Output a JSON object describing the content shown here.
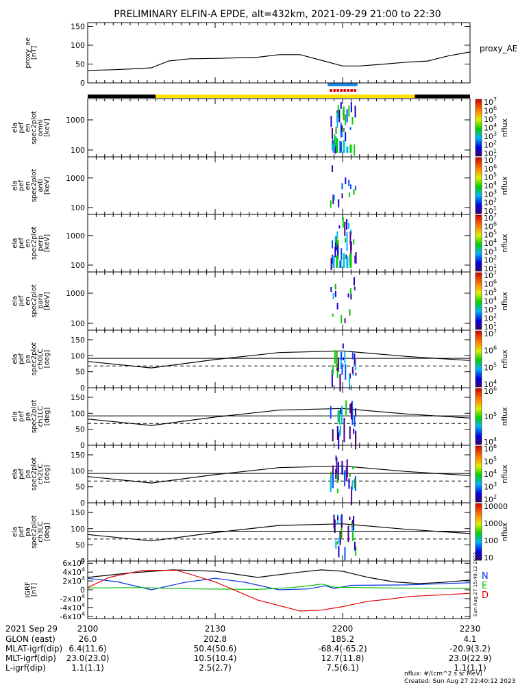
{
  "title": "PRELIMINARY ELFIN-A EPDE, alt=432km, 2021-09-29 21:00 to 22:30",
  "footer": {
    "units_note": "nflux: #/(cm^2 s sr MeV)",
    "created": "Created: Sun Aug 27 22:40:12 2023",
    "side_stamp": "Sun Aug 27 15:40:12 2023"
  },
  "ephemeris": {
    "date": "2021 Sep 29",
    "rows": [
      {
        "label": "GLON (east)",
        "values": [
          "26.0",
          "202.8",
          "185.2",
          "4.1"
        ]
      },
      {
        "label": "MLAT-igrf(dip)",
        "values": [
          "6.4(11.6)",
          "50.4(50.6)",
          "-68.4(-65.2)",
          "-20.9(3.2)"
        ]
      },
      {
        "label": "MLT-igrf(dip)",
        "values": [
          "23.0(23.0)",
          "10.5(10.4)",
          "12.7(11.8)",
          "23.0(22.9)"
        ]
      },
      {
        "label": "L-igrf(dip)",
        "values": [
          "1.1(1.1)",
          "2.5(2.7)",
          "7.5(6.1)",
          "1.1(1.1)"
        ]
      }
    ]
  },
  "chart_data": {
    "type": "line",
    "time_axis": {
      "range": [
        "21:00",
        "22:30"
      ],
      "ticks": [
        "2100",
        "2130",
        "2200",
        "2230"
      ]
    },
    "status_bar": {
      "segments": [
        {
          "start": "21:00",
          "end": "21:16",
          "color": "#000000"
        },
        {
          "start": "21:16",
          "end": "22:17",
          "color": "#ffe100"
        },
        {
          "start": "22:17",
          "end": "22:30",
          "color": "#000000"
        }
      ],
      "science_zone": {
        "start": "21:56.5",
        "end": "22:03.5",
        "color": "#1e88e5"
      },
      "red_markers": {
        "start": "21:57",
        "end": "22:03",
        "color": "#e00000"
      }
    },
    "panels": [
      {
        "id": "proxy_ae",
        "type": "line",
        "ylabel": [
          "proxy_ae",
          "[nT]"
        ],
        "legend": "proxy_AE",
        "ylim": [
          0,
          160
        ],
        "yticks": [
          "0",
          "50",
          "100",
          "150"
        ],
        "x": [
          0,
          6,
          12,
          15,
          19,
          24,
          30,
          40,
          45,
          50,
          55,
          60,
          64,
          70,
          75,
          80,
          85,
          90
        ],
        "y": [
          33,
          35,
          38,
          40,
          58,
          64,
          65,
          68,
          75,
          75,
          60,
          45,
          45,
          50,
          55,
          58,
          72,
          82
        ]
      },
      {
        "id": "spec_omni",
        "type": "heatmap",
        "ylabel": [
          "ela",
          "pef",
          "en",
          "spec2plot",
          "omni",
          "[keV]"
        ],
        "yticks": [
          "100",
          "1000"
        ],
        "colorbar": {
          "label": "nflux",
          "ticks": [
            "10^1",
            "10^2",
            "10^3",
            "10^4",
            "10^5",
            "10^6",
            "10^7"
          ]
        }
      },
      {
        "id": "spec_anti",
        "type": "heatmap",
        "ylabel": [
          "ela",
          "pef",
          "en",
          "spec2plot",
          "anti",
          "[keV]"
        ],
        "yticks": [
          "100",
          "1000"
        ],
        "colorbar": {
          "label": "nflux",
          "ticks": [
            "10^1",
            "10^2",
            "10^3",
            "10^4",
            "10^5",
            "10^6",
            "10^7"
          ]
        }
      },
      {
        "id": "spec_perp",
        "type": "heatmap",
        "ylabel": [
          "ela",
          "pef",
          "en",
          "spec2plot",
          "perp",
          "[keV]"
        ],
        "yticks": [
          "100",
          "1000"
        ],
        "colorbar": {
          "label": "nflux",
          "ticks": [
            "10^1",
            "10^2",
            "10^3",
            "10^4",
            "10^5",
            "10^6",
            "10^7"
          ]
        }
      },
      {
        "id": "spec_para",
        "type": "heatmap",
        "ylabel": [
          "ela",
          "pef",
          "en",
          "spec2plot",
          "para",
          "[keV]"
        ],
        "yticks": [
          "100",
          "1000"
        ],
        "colorbar": {
          "label": "nflux",
          "ticks": [
            "10^1",
            "10^2",
            "10^3",
            "10^4",
            "10^5",
            "10^6",
            "10^7"
          ]
        }
      },
      {
        "id": "ch0LC",
        "type": "heatmap",
        "ylabel": [
          "ela",
          "pef",
          "pa",
          "spec2plot",
          "ch0LC",
          "[deg]"
        ],
        "ylim": [
          0,
          180
        ],
        "yticks": [
          "0",
          "50",
          "100",
          "150"
        ],
        "colorbar": {
          "label": "nflux",
          "ticks": [
            "10^4",
            "10^5",
            "10^6",
            "10^7"
          ]
        }
      },
      {
        "id": "ch1LC",
        "type": "heatmap",
        "ylabel": [
          "ela",
          "pef",
          "pa",
          "spec2plot",
          "ch1LC",
          "[deg]"
        ],
        "ylim": [
          0,
          180
        ],
        "yticks": [
          "0",
          "50",
          "100",
          "150"
        ],
        "colorbar": {
          "label": "nflux",
          "ticks": [
            "10^4",
            "10^5",
            "10^6"
          ]
        }
      },
      {
        "id": "ch2LC",
        "type": "heatmap",
        "ylabel": [
          "ela",
          "pef",
          "pa",
          "spec2plot",
          "ch2LC",
          "[deg]"
        ],
        "ylim": [
          0,
          180
        ],
        "yticks": [
          "0",
          "50",
          "100",
          "150"
        ],
        "colorbar": {
          "label": "nflux",
          "ticks": [
            "10^2",
            "10^3",
            "10^4",
            "10^5",
            "10^6"
          ]
        }
      },
      {
        "id": "ch3LC",
        "type": "heatmap",
        "ylabel": [
          "ela",
          "pef",
          "pa",
          "spec2plot",
          "ch3LC",
          "[deg]"
        ],
        "ylim": [
          0,
          180
        ],
        "yticks": [
          "0",
          "50",
          "100",
          "150"
        ],
        "colorbar": {
          "label": "nflux",
          "ticks": [
            "10",
            "100",
            "1000",
            "10000"
          ]
        }
      },
      {
        "id": "igrf",
        "type": "line",
        "ylabel": [
          "IGRF",
          "[nT]"
        ],
        "ylim": [
          -65000,
          65000
        ],
        "yticks": [
          "6x10^4",
          "4x10^4",
          "2x10^4",
          "0",
          "-2x10^4",
          "-4x10^4",
          "-6x10^4"
        ],
        "legend": [
          {
            "label": "N",
            "color": "#0030e0"
          },
          {
            "label": "E",
            "color": "#00c000"
          },
          {
            "label": "D",
            "color": "#e00000"
          }
        ],
        "series": [
          {
            "key": "total",
            "color": "#000000",
            "x": [
              0,
              10,
              20,
              30,
              40,
              50,
              55,
              60,
              66,
              72,
              78,
              84,
              90
            ],
            "y": [
              28000,
              38000,
              45000,
              42000,
              28000,
              40000,
              45000,
              42000,
              28000,
              18000,
              14000,
              17000,
              22000
            ]
          },
          {
            "key": "N",
            "color": "#0030e0",
            "x": [
              0,
              7,
              15,
              23,
              30,
              37,
              45,
              52,
              56,
              58,
              62,
              75,
              90
            ],
            "y": [
              26000,
              18000,
              0,
              17000,
              26000,
              17000,
              0,
              2000,
              9000,
              3000,
              10000,
              11000,
              16000
            ]
          },
          {
            "key": "E",
            "color": "#00c000",
            "x": [
              0,
              12,
              25,
              40,
              48,
              53,
              55,
              58,
              70,
              90
            ],
            "y": [
              4000,
              5000,
              2000,
              1000,
              5000,
              10000,
              13000,
              6000,
              4000,
              3000
            ]
          },
          {
            "key": "D",
            "color": "#e00000",
            "x": [
              0,
              5,
              13,
              21,
              30,
              40,
              50,
              55,
              60,
              66,
              71,
              76,
              82,
              90
            ],
            "y": [
              5000,
              28000,
              44000,
              44000,
              18000,
              -23000,
              -48000,
              -46000,
              -38000,
              -26000,
              -21000,
              -15000,
              -12000,
              -8000
            ]
          }
        ]
      }
    ]
  }
}
